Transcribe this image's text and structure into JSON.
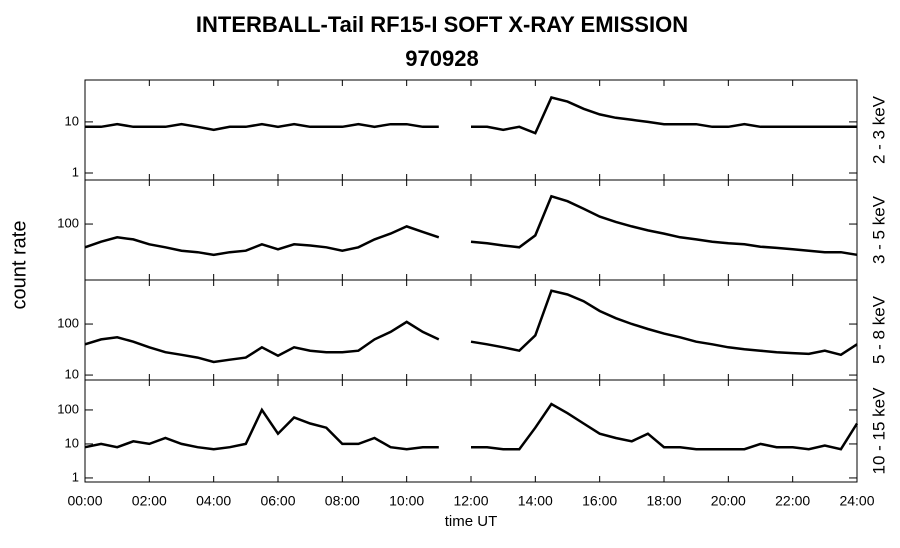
{
  "title": "INTERBALL-Tail RF15-I SOFT X-RAY EMISSION",
  "subtitle": "970928",
  "xlabel": "time UT",
  "ylabel": "count rate",
  "chart_data": [
    {
      "type": "line",
      "label": "2 - 3 keV",
      "log_y": true,
      "color": "#000000",
      "x": [
        0,
        0.5,
        1,
        1.5,
        2,
        2.5,
        3,
        3.5,
        4,
        4.5,
        5,
        5.5,
        6,
        6.5,
        7,
        7.5,
        8,
        8.5,
        9,
        9.5,
        10,
        10.5,
        11,
        11.5,
        12,
        12.5,
        13,
        13.5,
        14,
        14.5,
        15,
        15.5,
        16,
        16.5,
        17,
        17.5,
        18,
        18.5,
        19,
        19.5,
        20,
        20.5,
        21,
        21.5,
        22,
        22.5,
        23,
        23.5,
        24
      ],
      "values": [
        8,
        8,
        9,
        8,
        8,
        8,
        9,
        8,
        7,
        8,
        8,
        9,
        8,
        9,
        8,
        8,
        8,
        9,
        8,
        9,
        9,
        8,
        8,
        null,
        8,
        8,
        7,
        8,
        6,
        30,
        25,
        18,
        14,
        12,
        11,
        10,
        9,
        9,
        9,
        8,
        8,
        9,
        8,
        8,
        8,
        8,
        8,
        8,
        8
      ],
      "xlim": [
        0,
        24
      ],
      "ylim": [
        0.73,
        66
      ],
      "yticks": [
        1,
        10
      ]
    },
    {
      "type": "line",
      "label": "3 - 5 keV",
      "log_y": true,
      "color": "#000000",
      "x": [
        0,
        0.5,
        1,
        1.5,
        2,
        2.5,
        3,
        3.5,
        4,
        4.5,
        5,
        5.5,
        6,
        6.5,
        7,
        7.5,
        8,
        8.5,
        9,
        9.5,
        10,
        10.5,
        11,
        11.5,
        12,
        12.5,
        13,
        13.5,
        14,
        14.5,
        15,
        15.5,
        16,
        16.5,
        17,
        17.5,
        18,
        18.5,
        19,
        19.5,
        20,
        20.5,
        21,
        21.5,
        22,
        22.5,
        23,
        23.5,
        24
      ],
      "values": [
        35,
        45,
        55,
        50,
        40,
        35,
        30,
        28,
        25,
        28,
        30,
        40,
        32,
        40,
        38,
        35,
        30,
        35,
        50,
        65,
        90,
        70,
        55,
        null,
        45,
        42,
        38,
        35,
        60,
        350,
        280,
        200,
        140,
        110,
        90,
        75,
        65,
        55,
        50,
        45,
        42,
        40,
        36,
        34,
        32,
        30,
        28,
        28,
        25
      ],
      "xlim": [
        0,
        24
      ],
      "ylim": [
        8,
        730
      ],
      "yticks": [
        100
      ]
    },
    {
      "type": "line",
      "label": "5 - 8 keV",
      "log_y": true,
      "color": "#000000",
      "x": [
        0,
        0.5,
        1,
        1.5,
        2,
        2.5,
        3,
        3.5,
        4,
        4.5,
        5,
        5.5,
        6,
        6.5,
        7,
        7.5,
        8,
        8.5,
        9,
        9.5,
        10,
        10.5,
        11,
        11.5,
        12,
        12.5,
        13,
        13.5,
        14,
        14.5,
        15,
        15.5,
        16,
        16.5,
        17,
        17.5,
        18,
        18.5,
        19,
        19.5,
        20,
        20.5,
        21,
        21.5,
        22,
        22.5,
        23,
        23.5,
        24
      ],
      "values": [
        40,
        50,
        55,
        45,
        35,
        28,
        25,
        22,
        18,
        20,
        22,
        35,
        24,
        35,
        30,
        28,
        28,
        30,
        50,
        70,
        110,
        70,
        50,
        null,
        45,
        40,
        35,
        30,
        60,
        450,
        380,
        280,
        180,
        130,
        100,
        80,
        65,
        55,
        45,
        40,
        35,
        32,
        30,
        28,
        27,
        26,
        30,
        25,
        40
      ],
      "xlim": [
        0,
        24
      ],
      "ylim": [
        8,
        730
      ],
      "yticks": [
        10,
        100
      ]
    },
    {
      "type": "line",
      "label": "10 - 15 keV",
      "log_y": true,
      "color": "#000000",
      "x": [
        0,
        0.5,
        1,
        1.5,
        2,
        2.5,
        3,
        3.5,
        4,
        4.5,
        5,
        5.5,
        6,
        6.5,
        7,
        7.5,
        8,
        8.5,
        9,
        9.5,
        10,
        10.5,
        11,
        11.5,
        12,
        12.5,
        13,
        13.5,
        14,
        14.5,
        15,
        15.5,
        16,
        16.5,
        17,
        17.5,
        18,
        18.5,
        19,
        19.5,
        20,
        20.5,
        21,
        21.5,
        22,
        22.5,
        23,
        23.5,
        24
      ],
      "values": [
        8,
        10,
        8,
        12,
        10,
        15,
        10,
        8,
        7,
        8,
        10,
        100,
        20,
        60,
        40,
        30,
        10,
        10,
        15,
        8,
        7,
        8,
        8,
        null,
        8,
        8,
        7,
        7,
        30,
        150,
        80,
        40,
        20,
        15,
        12,
        20,
        8,
        8,
        7,
        7,
        7,
        7,
        10,
        8,
        8,
        7,
        9,
        7,
        40
      ],
      "xlim": [
        0,
        24
      ],
      "ylim": [
        0.76,
        760
      ],
      "yticks": [
        1,
        10,
        100
      ],
      "xticks": [
        {
          "value": 0,
          "label": "00:00"
        },
        {
          "value": 2,
          "label": "02:00"
        },
        {
          "value": 4,
          "label": "04:00"
        },
        {
          "value": 6,
          "label": "06:00"
        },
        {
          "value": 8,
          "label": "08:00"
        },
        {
          "value": 10,
          "label": "10:00"
        },
        {
          "value": 12,
          "label": "12:00"
        },
        {
          "value": 14,
          "label": "14:00"
        },
        {
          "value": 16,
          "label": "16:00"
        },
        {
          "value": 18,
          "label": "18:00"
        },
        {
          "value": 20,
          "label": "20:00"
        },
        {
          "value": 22,
          "label": "22:00"
        },
        {
          "value": 24,
          "label": "24:00"
        }
      ]
    }
  ]
}
